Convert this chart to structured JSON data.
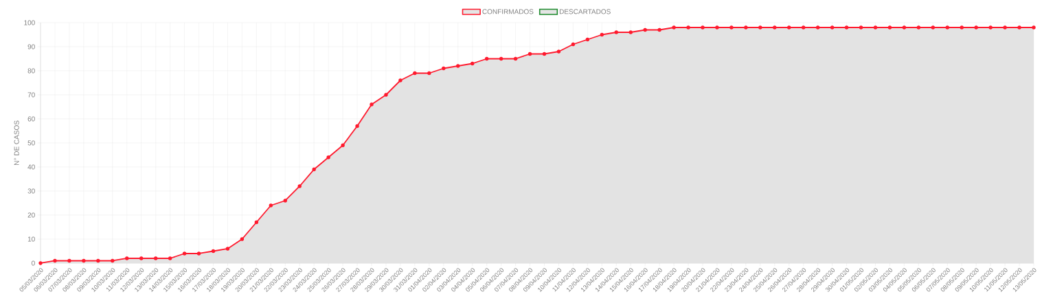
{
  "chart_data": {
    "type": "area",
    "ylabel": "N° DE CASOS",
    "categories": [
      "05/03/2020",
      "06/03/2020",
      "07/03/2020",
      "08/03/2020",
      "09/03/2020",
      "10/03/2020",
      "11/03/2020",
      "12/03/2020",
      "13/03/2020",
      "14/03/2020",
      "15/03/2020",
      "16/03/2020",
      "17/03/2020",
      "18/03/2020",
      "19/03/2020",
      "20/03/2020",
      "21/03/2020",
      "22/03/2020",
      "23/03/2020",
      "24/03/2020",
      "25/03/2020",
      "26/03/2020",
      "27/03/2020",
      "28/03/2020",
      "29/03/2020",
      "30/03/2020",
      "31/03/2020",
      "01/04/2020",
      "02/04/2020",
      "03/04/2020",
      "04/04/2020",
      "05/04/2020",
      "06/04/2020",
      "07/04/2020",
      "08/04/2020",
      "09/04/2020",
      "10/04/2020",
      "11/04/2020",
      "12/04/2020",
      "13/04/2020",
      "14/04/2020",
      "15/04/2020",
      "16/04/2020",
      "17/04/2020",
      "18/04/2020",
      "19/04/2020",
      "20/04/2020",
      "21/04/2020",
      "22/04/2020",
      "23/04/2020",
      "24/04/2020",
      "25/04/2020",
      "26/04/2020",
      "27/04/2020",
      "28/04/2020",
      "29/04/2020",
      "30/04/2020",
      "01/05/2020",
      "02/05/2020",
      "03/05/2020",
      "04/05/2020",
      "05/05/2020",
      "06/05/2020",
      "07/05/2020",
      "08/05/2020",
      "09/05/2020",
      "10/05/2020",
      "11/05/2020",
      "12/05/2020",
      "13/05/2020"
    ],
    "series": [
      {
        "name": "CONFIRMADOS",
        "color": "#ff1a2e",
        "values": [
          0,
          1,
          1,
          1,
          1,
          1,
          2,
          2,
          2,
          2,
          4,
          4,
          5,
          6,
          10,
          17,
          24,
          26,
          32,
          39,
          44,
          49,
          57,
          66,
          70,
          76,
          79,
          79,
          81,
          82,
          83,
          85,
          85,
          85,
          87,
          87,
          88,
          91,
          93,
          95,
          96,
          96,
          97,
          97,
          98,
          98,
          98,
          98,
          98,
          98,
          98,
          98,
          98,
          98,
          98,
          98,
          98,
          98,
          98,
          98,
          98,
          98,
          98,
          98,
          98,
          98,
          98,
          98,
          98,
          98
        ]
      },
      {
        "name": "DESCARTADOS",
        "color": "#1e8a2e",
        "values": [
          null,
          null,
          null,
          null,
          null,
          null,
          null,
          null,
          null,
          null,
          null,
          null,
          null,
          null,
          null,
          null,
          null,
          null,
          null,
          null,
          null,
          null,
          null,
          null,
          null,
          null,
          null,
          null,
          null,
          null,
          null,
          null,
          null,
          null,
          null,
          null,
          null,
          null,
          null,
          null,
          null,
          null,
          null,
          null,
          null,
          null,
          null,
          null,
          null,
          null,
          null,
          null,
          null,
          null,
          null,
          null,
          null,
          null,
          null,
          null,
          null,
          null,
          null,
          null,
          null,
          null,
          null,
          null,
          null,
          null
        ]
      }
    ],
    "ylim": [
      0,
      100
    ],
    "yticks": [
      0,
      10,
      20,
      30,
      40,
      50,
      60,
      70,
      80,
      90,
      100
    ],
    "grid": true,
    "legend": "top",
    "marker": "circle"
  }
}
